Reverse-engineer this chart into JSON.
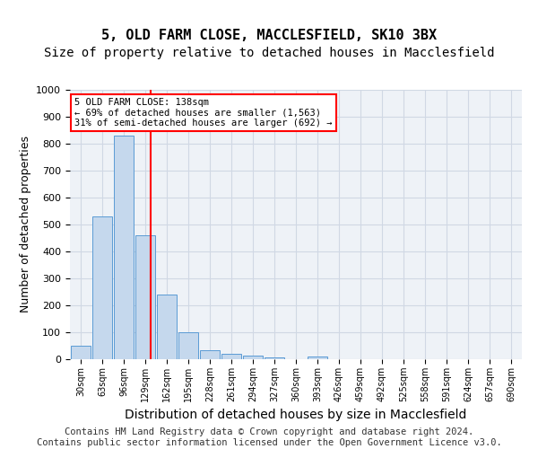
{
  "title_line1": "5, OLD FARM CLOSE, MACCLESFIELD, SK10 3BX",
  "title_line2": "Size of property relative to detached houses in Macclesfield",
  "xlabel": "Distribution of detached houses by size in Macclesfield",
  "ylabel": "Number of detached properties",
  "bin_labels": [
    "30sqm",
    "63sqm",
    "96sqm",
    "129sqm",
    "162sqm",
    "195sqm",
    "228sqm",
    "261sqm",
    "294sqm",
    "327sqm",
    "360sqm",
    "393sqm",
    "426sqm",
    "459sqm",
    "492sqm",
    "525sqm",
    "558sqm",
    "591sqm",
    "624sqm",
    "657sqm",
    "690sqm"
  ],
  "bar_values": [
    50,
    530,
    830,
    460,
    240,
    100,
    35,
    20,
    12,
    8,
    0,
    10,
    0,
    0,
    0,
    0,
    0,
    0,
    0,
    0,
    0
  ],
  "bar_color": "#c5d8ed",
  "bar_edge_color": "#5b9bd5",
  "annotation_line1": "5 OLD FARM CLOSE: 138sqm",
  "annotation_line2": "← 69% of detached houses are smaller (1,563)",
  "annotation_line3": "31% of semi-detached houses are larger (692) →",
  "annotation_box_color": "white",
  "annotation_box_edge_color": "red",
  "vline_color": "red",
  "vline_pos": 3.27,
  "ylim": [
    0,
    1000
  ],
  "yticks": [
    0,
    100,
    200,
    300,
    400,
    500,
    600,
    700,
    800,
    900,
    1000
  ],
  "grid_color": "#d0d8e4",
  "background_color": "#eef2f7",
  "footer_line1": "Contains HM Land Registry data © Crown copyright and database right 2024.",
  "footer_line2": "Contains public sector information licensed under the Open Government Licence v3.0.",
  "title_fontsize": 11,
  "subtitle_fontsize": 10,
  "axis_label_fontsize": 9,
  "tick_fontsize": 8,
  "footer_fontsize": 7.5
}
